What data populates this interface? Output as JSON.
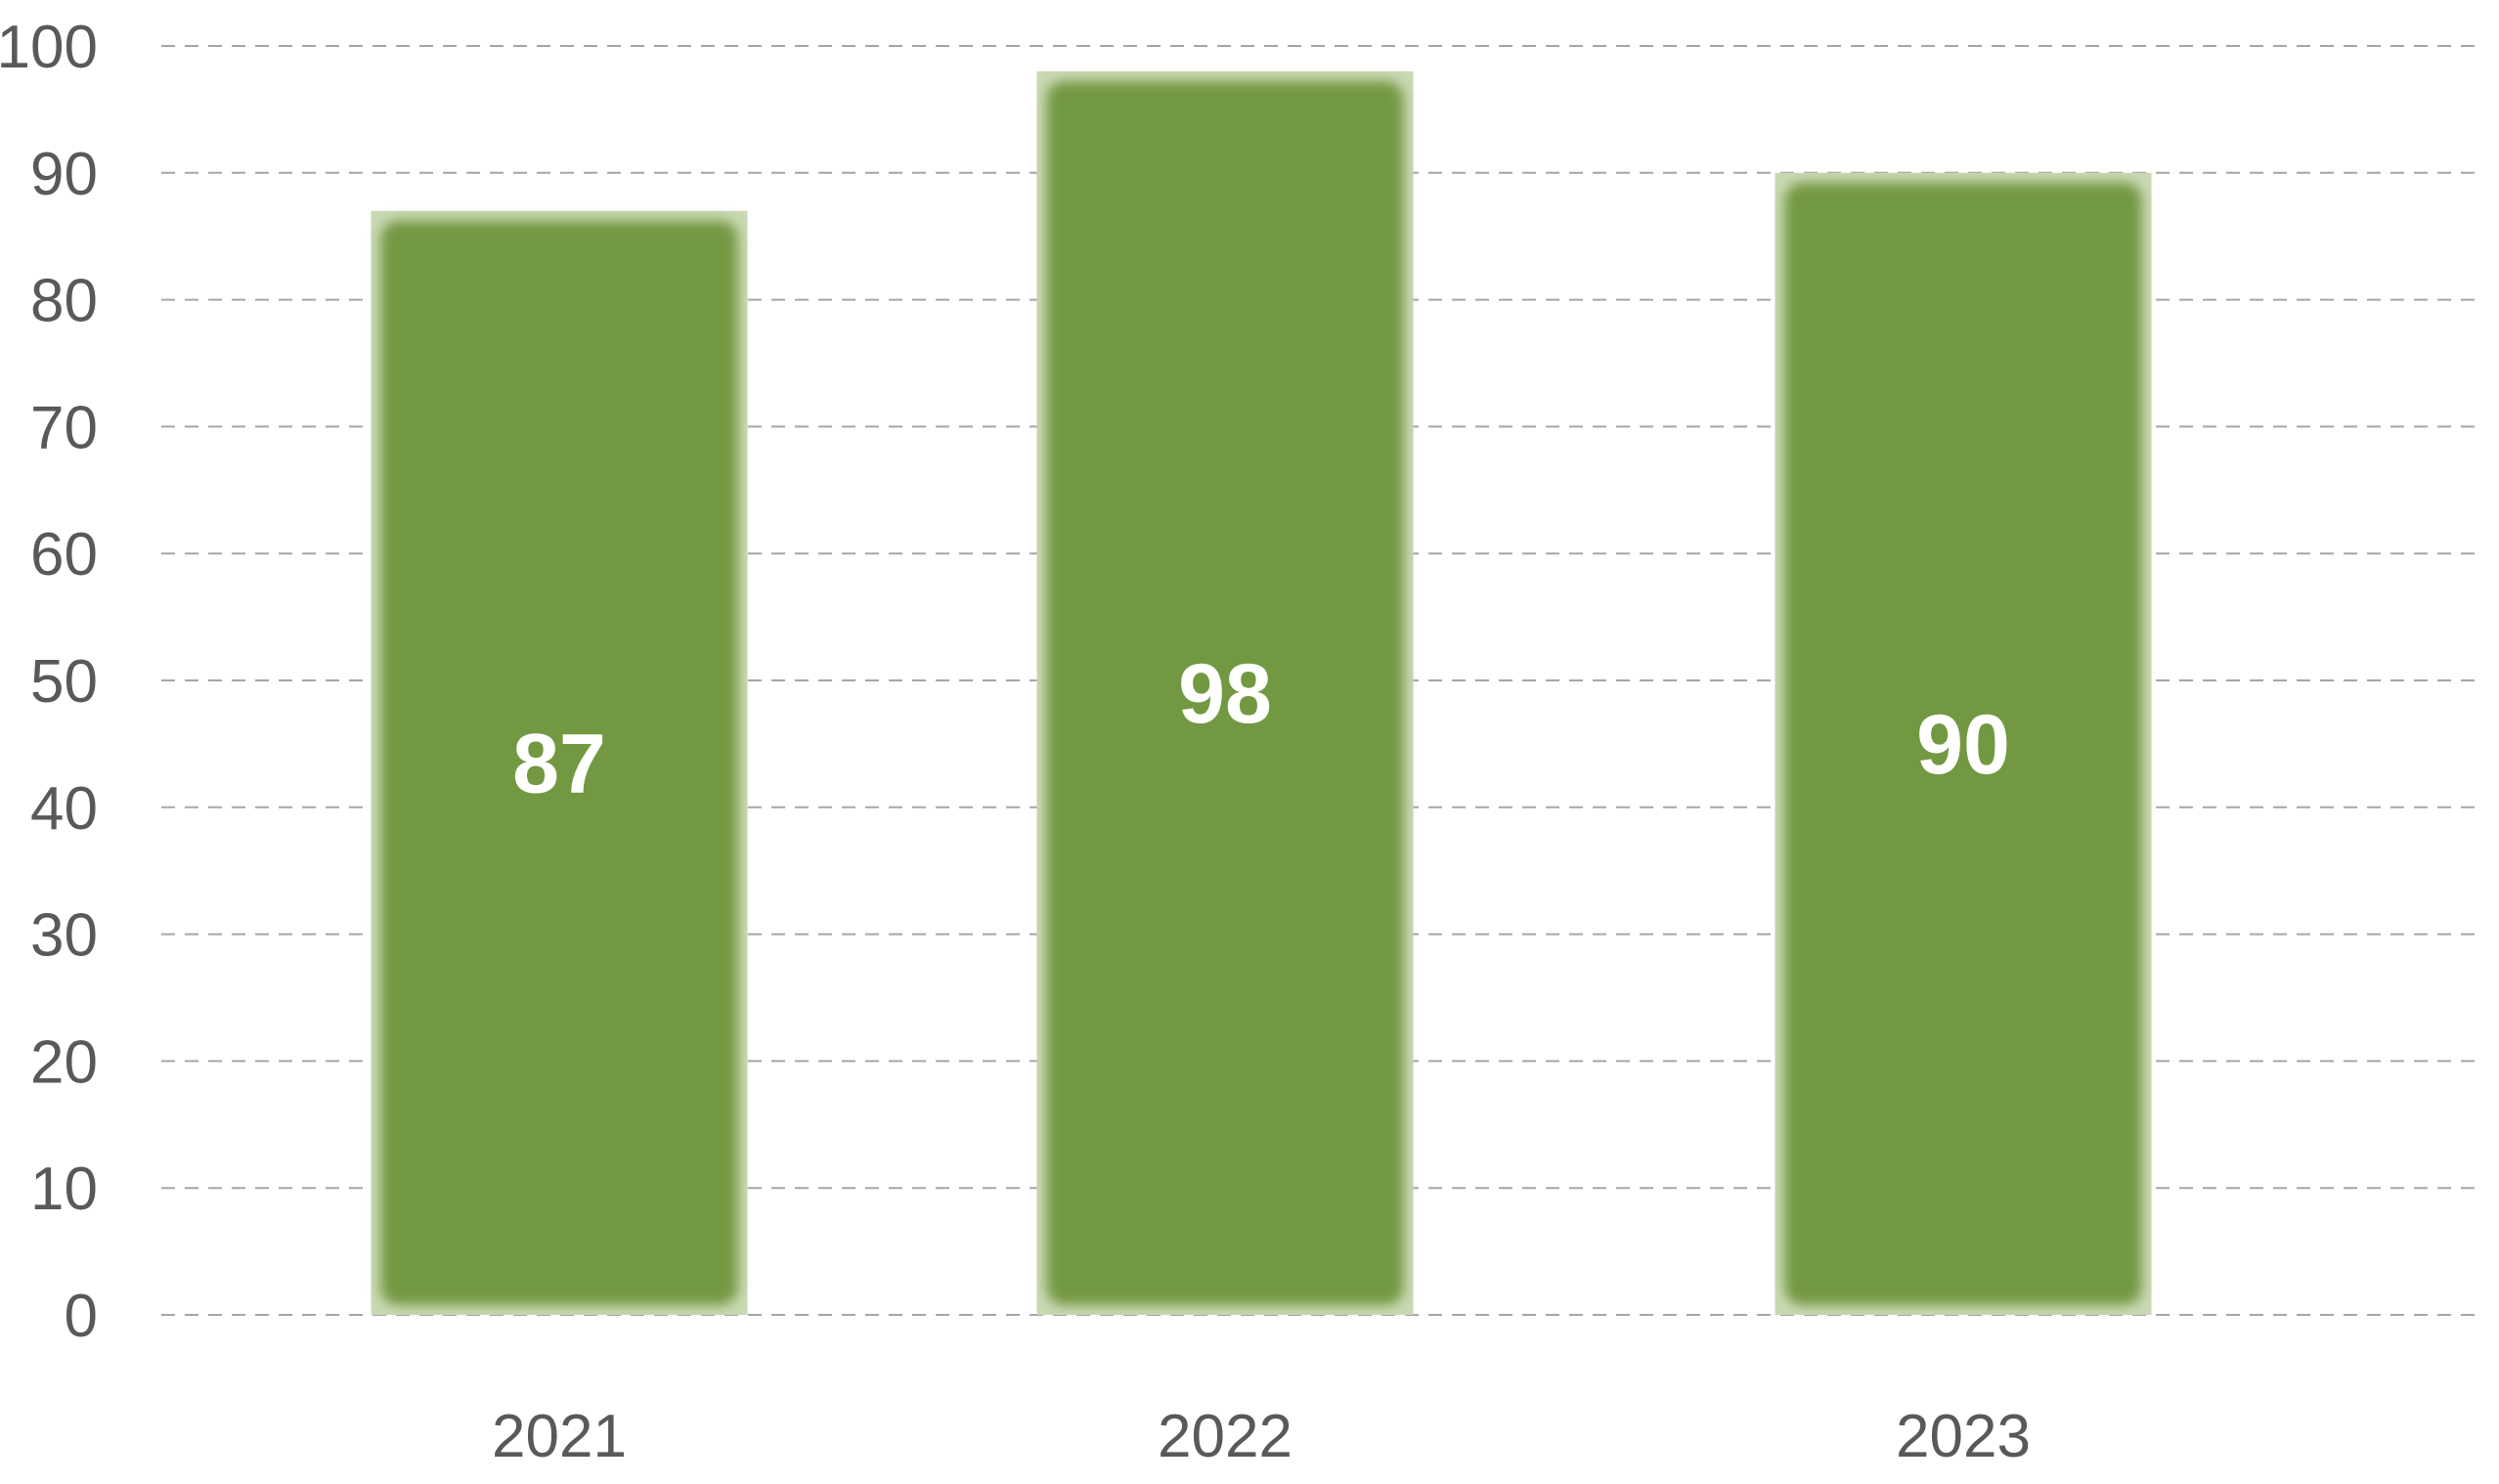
{
  "chart_data": {
    "type": "bar",
    "categories": [
      "2021",
      "2022",
      "2023"
    ],
    "values": [
      87,
      98,
      90
    ],
    "data_labels": [
      "87",
      "98",
      "90"
    ],
    "title": "",
    "xlabel": "",
    "ylabel": "",
    "ylim": [
      0,
      100
    ],
    "yticks": [
      0,
      10,
      20,
      30,
      40,
      50,
      60,
      70,
      80,
      90,
      100
    ],
    "ytick_labels": [
      "0",
      "10",
      "20",
      "30",
      "40",
      "50",
      "60",
      "70",
      "80",
      "90",
      "100"
    ],
    "grid": true,
    "grid_style": "dashed",
    "legend": "none",
    "colors": {
      "bar": "#739842",
      "bar_edge": "#c9d9b3",
      "label": "#ffffff",
      "tick_text": "#595959",
      "grid": "#a6a6a6"
    }
  }
}
